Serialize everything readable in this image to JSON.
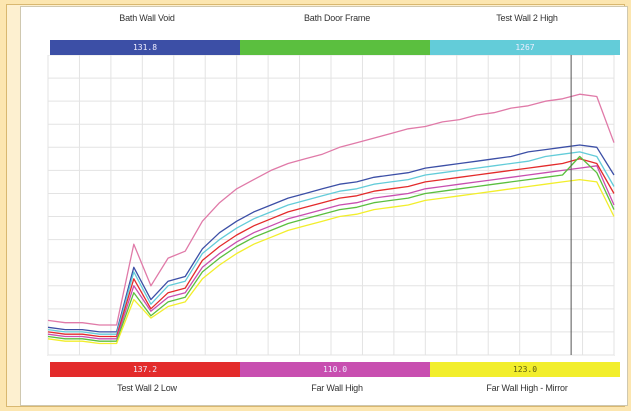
{
  "sensors": {
    "top": [
      {
        "name": "Bath Wall Void",
        "value": "131.8",
        "color": "#3c4fa6"
      },
      {
        "name": "Bath Door Frame",
        "value": "",
        "color": "#5bbf3f"
      },
      {
        "name": "Test Wall 2 High",
        "value": "1267",
        "color": "#63ccd9"
      }
    ],
    "bottom": [
      {
        "name": "Test Wall 2 Low",
        "value": "137.2",
        "color": "#e32b2b"
      },
      {
        "name": "Far Wall High",
        "value": "110.0",
        "color": "#c84fb0"
      },
      {
        "name": "Far Wall High - Mirror",
        "value": "123.0",
        "color": "#f2ee2c"
      }
    ]
  },
  "chart_data": {
    "type": "line",
    "title": "",
    "xlabel": "",
    "ylabel": "",
    "grid": true,
    "ylim": [
      80,
      210
    ],
    "x": [
      0,
      1,
      2,
      3,
      4,
      5,
      6,
      7,
      8,
      9,
      10,
      11,
      12,
      13,
      14,
      15,
      16,
      17,
      18,
      19,
      20,
      21,
      22,
      23,
      24,
      25,
      26,
      27,
      28,
      29,
      30,
      31,
      32,
      33
    ],
    "cursor_x": 30.5,
    "series": [
      {
        "color": "#e07aa8",
        "values": [
          95,
          94,
          94,
          93,
          93,
          128,
          110,
          122,
          125,
          138,
          146,
          152,
          156,
          160,
          163,
          165,
          167,
          170,
          172,
          174,
          176,
          178,
          179,
          181,
          182,
          184,
          185,
          187,
          188,
          190,
          191,
          193,
          192,
          172
        ]
      },
      {
        "color": "#3c4fa6",
        "values": [
          92,
          91,
          91,
          90,
          90,
          118,
          104,
          112,
          114,
          126,
          133,
          138,
          142,
          145,
          148,
          150,
          152,
          154,
          155,
          157,
          158,
          159,
          161,
          162,
          163,
          164,
          165,
          166,
          168,
          169,
          170,
          171,
          170,
          158
        ]
      },
      {
        "color": "#63ccd9",
        "values": [
          91,
          90,
          90,
          89,
          89,
          116,
          102,
          110,
          112,
          124,
          130,
          135,
          139,
          142,
          145,
          147,
          149,
          151,
          152,
          154,
          155,
          156,
          158,
          159,
          160,
          161,
          162,
          163,
          164,
          166,
          167,
          168,
          166,
          153
        ]
      },
      {
        "color": "#e32b2b",
        "values": [
          90,
          89,
          89,
          88,
          88,
          113,
          100,
          107,
          109,
          121,
          127,
          132,
          136,
          139,
          142,
          144,
          146,
          148,
          149,
          151,
          152,
          153,
          155,
          156,
          157,
          158,
          159,
          160,
          161,
          162,
          163,
          165,
          163,
          150
        ]
      },
      {
        "color": "#c84fb0",
        "values": [
          89,
          88,
          88,
          87,
          87,
          110,
          99,
          105,
          107,
          118,
          124,
          129,
          133,
          136,
          139,
          141,
          143,
          145,
          146,
          148,
          149,
          150,
          152,
          153,
          154,
          155,
          156,
          157,
          158,
          159,
          160,
          161,
          162,
          145
        ]
      },
      {
        "color": "#5bbf3f",
        "values": [
          88,
          87,
          87,
          86,
          86,
          107,
          97,
          103,
          105,
          116,
          122,
          127,
          131,
          134,
          137,
          139,
          141,
          143,
          144,
          146,
          147,
          148,
          150,
          151,
          152,
          153,
          154,
          155,
          156,
          157,
          158,
          166,
          159,
          143
        ]
      },
      {
        "color": "#f2ee2c",
        "values": [
          87,
          86,
          86,
          85,
          85,
          104,
          96,
          101,
          103,
          113,
          119,
          124,
          128,
          131,
          134,
          136,
          138,
          140,
          141,
          143,
          144,
          145,
          147,
          148,
          149,
          150,
          151,
          152,
          153,
          154,
          155,
          156,
          155,
          140
        ]
      }
    ]
  }
}
